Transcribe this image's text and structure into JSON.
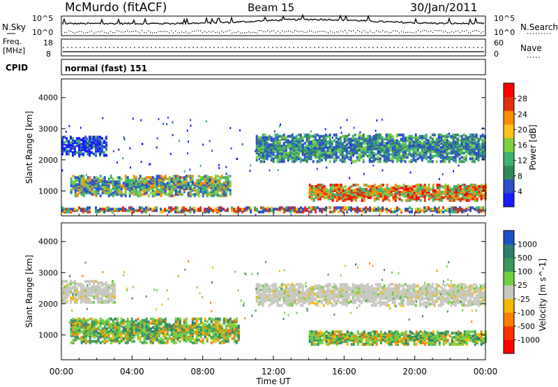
{
  "header": {
    "station": "McMurdo (fitACF)",
    "beam": "Beam 15",
    "date": "30/Jan/2011"
  },
  "top_panels": {
    "nsky_label": "N.Sky",
    "nsky_ticks": [
      "10^5",
      "10^0"
    ],
    "nsearch_label": "N.Search",
    "nsearch_ticks": [
      "10^5",
      "10^0"
    ],
    "freq_label_1": "Freq.",
    "freq_label_2": "[MHz]",
    "freq_ticks": [
      "18",
      "8"
    ],
    "nave_label": "Nave",
    "nave_ticks": [
      "60",
      "0"
    ],
    "cpid_label": "CPID",
    "cpid_value": "normal (fast) 151"
  },
  "colors": {
    "power_scale": [
      "#1a1aff",
      "#2b50c8",
      "#2e8b57",
      "#3cb371",
      "#7fd040",
      "#ffc21a",
      "#ff8c00",
      "#e03010",
      "#ff0000"
    ],
    "velocity_scale": [
      "#1e50c8",
      "#2e7d6e",
      "#3c9a5a",
      "#6fd040",
      "#c8c8c0",
      "#f5b800",
      "#ff8000",
      "#ff3000",
      "#ff0000"
    ]
  },
  "chart_data": [
    {
      "type": "heatmap",
      "title": "Power",
      "ylabel": "Slant Range [km]",
      "yticks": [
        "1000",
        "2000",
        "3000",
        "4000"
      ],
      "ylim": [
        200,
        4600
      ],
      "xlim": [
        0,
        24
      ],
      "colorbar_label": "Power [dB]",
      "colorbar_ticks": [
        "4",
        "8",
        "12",
        "16",
        "20",
        "24",
        "28"
      ],
      "colorbar_range": [
        0,
        31
      ],
      "regions": [
        {
          "t0": 0.0,
          "t1": 24.0,
          "r0": 280,
          "r1": 420,
          "level": "mid-high"
        },
        {
          "t0": 0.5,
          "t1": 9.5,
          "r0": 800,
          "r1": 1450,
          "level": "mid"
        },
        {
          "t0": 14.0,
          "t1": 24.0,
          "r0": 650,
          "r1": 1150,
          "level": "high"
        },
        {
          "t0": 0.0,
          "t1": 2.5,
          "r0": 2100,
          "r1": 2700,
          "level": "low"
        },
        {
          "t0": 11.0,
          "t1": 24.0,
          "r0": 1900,
          "r1": 2800,
          "level": "mid-low"
        }
      ]
    },
    {
      "type": "heatmap",
      "title": "Velocity",
      "ylabel": "Slant Range [km]",
      "yticks": [
        "1000",
        "2000",
        "3000",
        "4000"
      ],
      "ylim": [
        200,
        4600
      ],
      "xlim": [
        0,
        24
      ],
      "xlabel": "Time UT",
      "xticks": [
        "00:00",
        "04:00",
        "08:00",
        "12:00",
        "16:00",
        "20:00",
        "00:00"
      ],
      "colorbar_label": "Velocity [m s^-1]",
      "colorbar_ticks": [
        "1000",
        "500",
        "100",
        "25",
        "-25",
        "-100",
        "-500",
        "-1000"
      ],
      "regions": [
        {
          "t0": 0.0,
          "t1": 3.0,
          "r0": 2000,
          "r1": 2700,
          "level": "ground"
        },
        {
          "t0": 0.5,
          "t1": 10.0,
          "r0": 700,
          "r1": 1500,
          "level": "positive"
        },
        {
          "t0": 11.0,
          "t1": 24.0,
          "r0": 1900,
          "r1": 2600,
          "level": "ground"
        },
        {
          "t0": 14.0,
          "t1": 24.0,
          "r0": 650,
          "r1": 1100,
          "level": "positive"
        }
      ]
    }
  ]
}
